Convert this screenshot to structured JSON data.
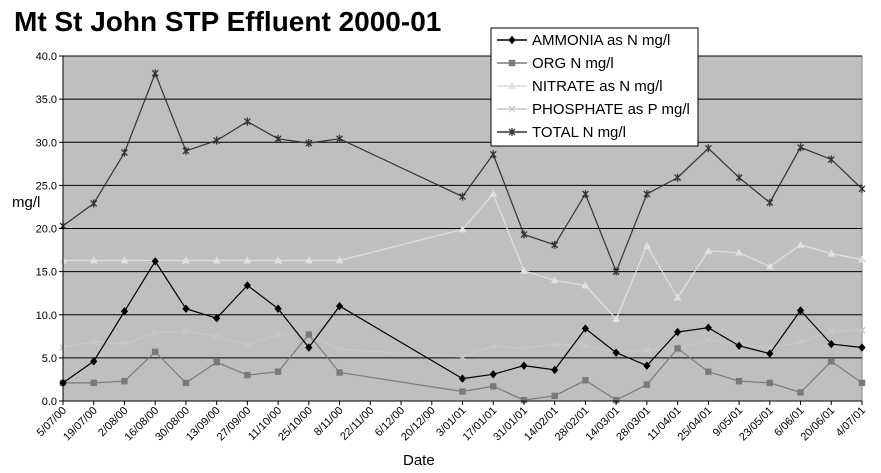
{
  "chart_data": {
    "type": "line",
    "title": "Mt St John STP Effluent 2000-01",
    "xlabel": "Date",
    "ylabel": "mg/l",
    "ylim": [
      0,
      40
    ],
    "yticks": [
      "0.0",
      "5.0",
      "10.0",
      "15.0",
      "20.0",
      "25.0",
      "30.0",
      "35.0",
      "40.0"
    ],
    "grid": true,
    "legend_position": "top-right",
    "x_dates": [
      "5/07/00",
      "19/07/00",
      "2/08/00",
      "16/08/00",
      "30/08/00",
      "13/09/00",
      "27/09/00",
      "11/10/00",
      "25/10/00",
      "8/11/00",
      "22/11/00",
      "6/12/00",
      "20/12/00",
      "3/01/01",
      "17/01/01",
      "31/01/01",
      "14/02/01",
      "28/02/01",
      "14/03/01",
      "28/03/01",
      "11/04/01",
      "25/04/01",
      "9/05/01",
      "23/05/01",
      "6/06/01",
      "20/06/01",
      "4/07/01"
    ],
    "series": [
      {
        "name": "AMMONIA as N mg/l",
        "color": "#000000",
        "marker": "diamond",
        "values": [
          2.1,
          4.6,
          10.4,
          16.2,
          10.7,
          9.6,
          13.4,
          10.7,
          6.2,
          11.0,
          null,
          null,
          null,
          2.6,
          3.1,
          4.1,
          3.6,
          8.4,
          5.6,
          4.1,
          8.0,
          8.5,
          6.4,
          5.5,
          10.5,
          6.6,
          6.2
        ]
      },
      {
        "name": "ORG N mg/l",
        "color": "#7a7a7a",
        "marker": "square",
        "values": [
          2.1,
          2.1,
          2.3,
          5.7,
          2.1,
          4.5,
          3.0,
          3.4,
          7.7,
          3.3,
          null,
          null,
          null,
          1.1,
          1.7,
          0.1,
          0.6,
          2.4,
          0.1,
          1.9,
          6.1,
          3.4,
          2.3,
          2.1,
          1.0,
          4.6,
          2.1
        ]
      },
      {
        "name": "NITRATE as N mg/l",
        "color": "#e0e0e0",
        "marker": "triangle",
        "values": [
          16.3,
          16.3,
          16.3,
          16.3,
          16.3,
          16.3,
          16.3,
          16.3,
          16.3,
          16.3,
          null,
          null,
          null,
          19.9,
          24.0,
          15.1,
          14.0,
          13.4,
          9.5,
          18.0,
          12.0,
          17.4,
          17.2,
          15.6,
          18.1,
          17.1,
          16.4
        ]
      },
      {
        "name": "PHOSPHATE as P mg/l",
        "color": "#c8c8c8",
        "marker": "x",
        "values": [
          6.2,
          6.9,
          6.6,
          7.9,
          8.1,
          7.5,
          6.5,
          7.7,
          7.8,
          6.0,
          null,
          null,
          null,
          5.1,
          6.4,
          6.1,
          6.6,
          6.4,
          5.7,
          5.9,
          6.1,
          7.1,
          6.6,
          6.2,
          6.8,
          8.1,
          8.2
        ]
      },
      {
        "name": "TOTAL N mg/l",
        "color": "#333333",
        "marker": "star",
        "values": [
          20.3,
          22.9,
          28.8,
          38.0,
          29.0,
          30.2,
          32.4,
          30.4,
          29.9,
          30.4,
          null,
          null,
          null,
          23.7,
          28.6,
          19.3,
          18.1,
          24.0,
          15.0,
          24.0,
          25.9,
          29.3,
          25.9,
          23.0,
          29.4,
          28.0,
          24.6
        ]
      }
    ]
  }
}
